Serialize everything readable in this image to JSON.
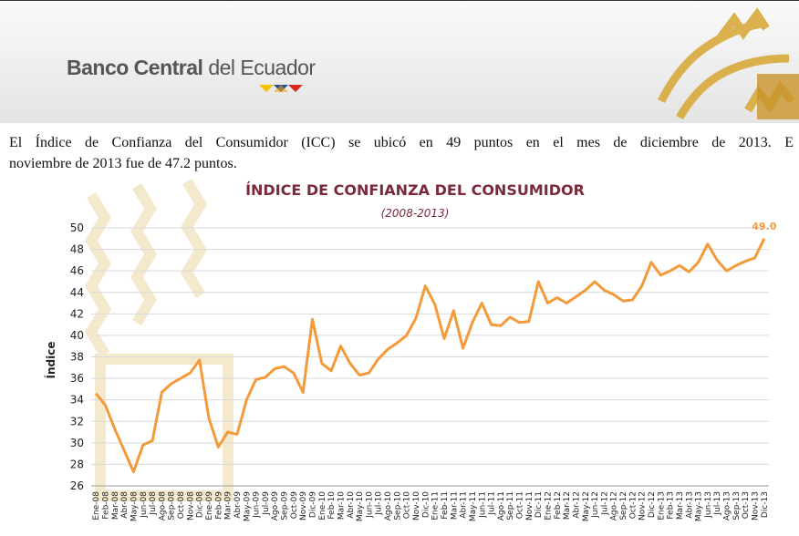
{
  "header": {
    "brand_bold": "Banco Central",
    "brand_rest": "del Ecuador"
  },
  "paragraph": {
    "lines": [
      "El Índice de Confianza del Consumidor (ICC) se ubicó en 49 puntos en el mes de diciembre de 2013. E",
      "noviembre de 2013 fue de 47.2 puntos."
    ]
  },
  "chart_data": {
    "type": "line",
    "title": "ÍNDICE DE CONFIANZA DEL CONSUMIDOR",
    "subtitle": "(2008-2013)",
    "y_label": "Índice",
    "categories": [
      "Ene-08",
      "Feb-08",
      "Mar-08",
      "Abr-08",
      "May-08",
      "Jun-08",
      "Jul-08",
      "Ago-08",
      "Sep-08",
      "Oct-08",
      "Nov-08",
      "Dic-08",
      "Ene-09",
      "Feb-09",
      "Mar-09",
      "Abr-09",
      "May-09",
      "Jun-09",
      "Jul-09",
      "Ago-09",
      "Sep-09",
      "Oct-09",
      "Nov-09",
      "Dic-09",
      "Ene-10",
      "Feb-10",
      "Mar-10",
      "Abr-10",
      "May-10",
      "Jun-10",
      "Jul-10",
      "Ago-10",
      "Sep-10",
      "Oct-10",
      "Nov-10",
      "Dic-10",
      "Ene-11",
      "Feb-11",
      "Mar-11",
      "Abr-11",
      "May-11",
      "Jun-11",
      "Jul-11",
      "Ago-11",
      "Sep-11",
      "Oct-11",
      "Nov-11",
      "Dic-11",
      "Ene-12",
      "Feb-12",
      "Mar-12",
      "Abr-12",
      "May-12",
      "Jun-12",
      "Jul-12",
      "Ago-12",
      "Sep-12",
      "Oct-12",
      "Nov-12",
      "Dic-12",
      "Ene-13",
      "Feb-13",
      "Mar-13",
      "Abr-13",
      "May-13",
      "Jun-13",
      "Jul-13",
      "Ago-13",
      "Sep-13",
      "Oct-13",
      "Nov-13",
      "Dic-13"
    ],
    "values": [
      34.6,
      33.5,
      31.3,
      29.3,
      27.3,
      29.8,
      30.2,
      34.7,
      35.5,
      36.0,
      36.5,
      37.7,
      32.3,
      29.6,
      31.0,
      30.8,
      34.0,
      35.9,
      36.1,
      36.9,
      37.1,
      36.5,
      34.7,
      41.5,
      37.4,
      36.7,
      39.0,
      37.4,
      36.3,
      36.5,
      37.8,
      38.7,
      39.3,
      40.0,
      41.6,
      44.6,
      42.9,
      39.7,
      42.3,
      38.8,
      41.2,
      43.0,
      41.0,
      40.9,
      41.7,
      41.2,
      41.3,
      45.0,
      43.0,
      43.5,
      43.0,
      43.6,
      44.2,
      45.0,
      44.2,
      43.8,
      43.2,
      43.3,
      44.6,
      46.8,
      45.6,
      46.0,
      46.5,
      45.9,
      46.8,
      48.5,
      47.0,
      46.0,
      46.5,
      46.9,
      47.2,
      49.0
    ],
    "value_labels": [
      null,
      null,
      null,
      null,
      null,
      null,
      null,
      null,
      null,
      null,
      null,
      null,
      null,
      null,
      null,
      null,
      null,
      null,
      null,
      null,
      null,
      null,
      null,
      null,
      null,
      null,
      null,
      null,
      null,
      null,
      null,
      null,
      null,
      null,
      null,
      null,
      null,
      null,
      null,
      null,
      null,
      null,
      null,
      null,
      null,
      null,
      null,
      null,
      null,
      null,
      null,
      null,
      null,
      null,
      null,
      null,
      null,
      null,
      null,
      null,
      null,
      null,
      null,
      null,
      null,
      null,
      null,
      null,
      null,
      null,
      null,
      "49.0"
    ],
    "color": "#f39a3b",
    "ylim": [
      26,
      50
    ],
    "yticks": [
      26,
      28,
      30,
      32,
      34,
      36,
      38,
      40,
      42,
      44,
      46,
      48,
      50
    ],
    "grid": true
  }
}
